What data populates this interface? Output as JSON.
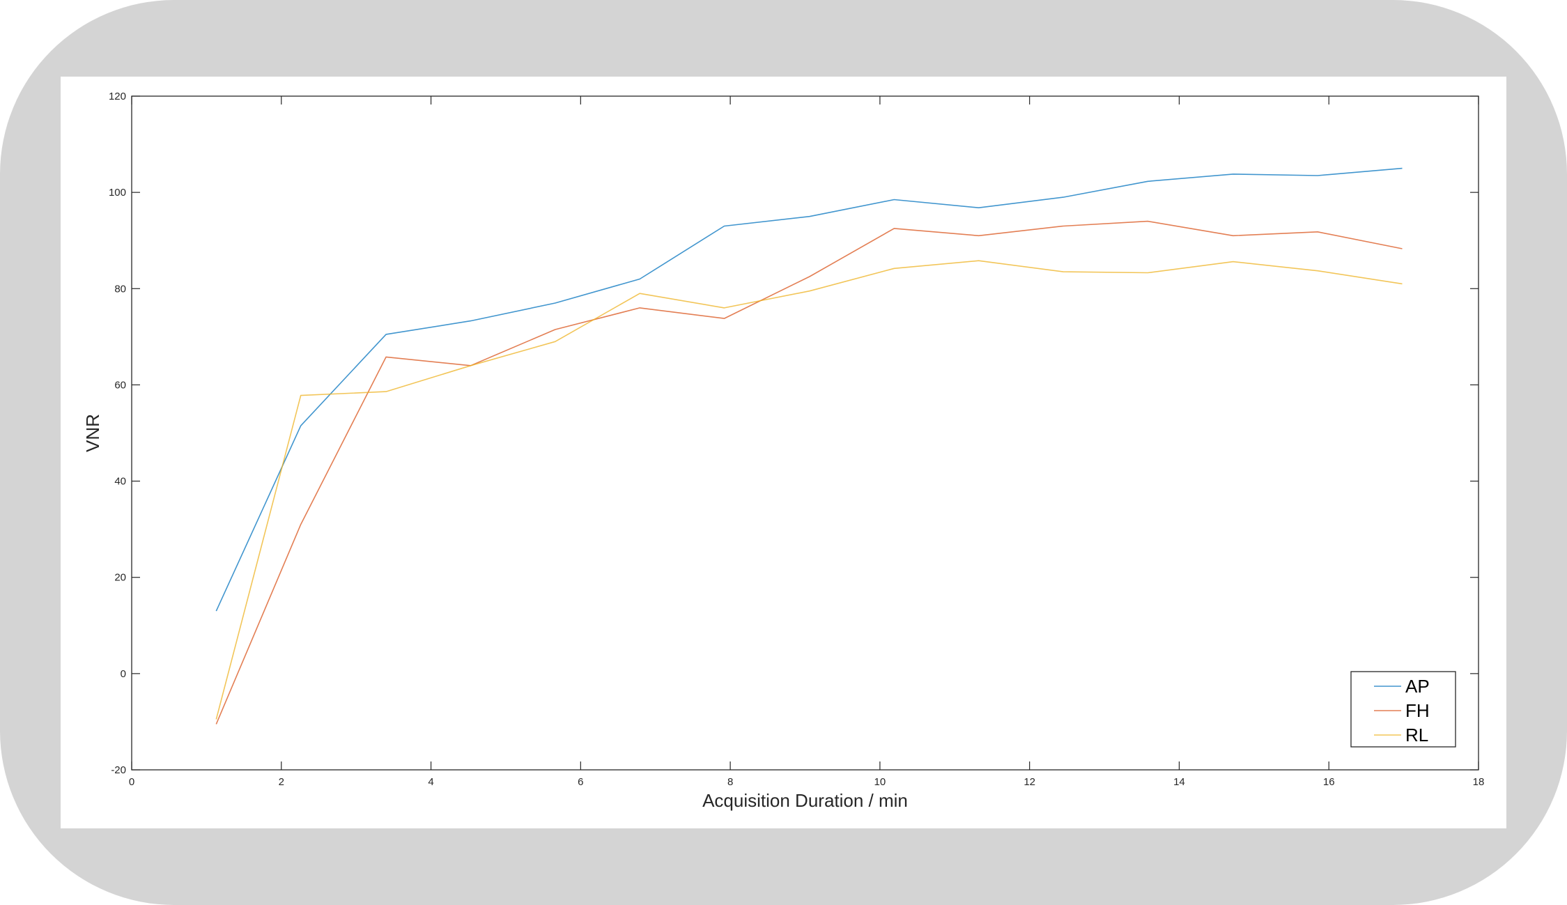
{
  "chart_data": {
    "type": "line",
    "title": "",
    "xlabel": "Acquisition Duration / min",
    "ylabel": "VNR",
    "xlim": [
      0,
      18
    ],
    "ylim": [
      -20,
      120
    ],
    "xticks": [
      0,
      2,
      4,
      6,
      8,
      10,
      12,
      14,
      16,
      18
    ],
    "yticks": [
      -20,
      0,
      20,
      40,
      60,
      80,
      100,
      120
    ],
    "grid": false,
    "legend_position": "bottom-right",
    "x": [
      1.13,
      2.26,
      3.4,
      4.53,
      5.66,
      6.79,
      7.92,
      9.06,
      10.19,
      11.32,
      12.45,
      13.58,
      14.72,
      15.85,
      16.98
    ],
    "series": [
      {
        "name": "AP",
        "color": "#0072BD",
        "values": [
          13,
          51.5,
          70.5,
          73.3,
          77,
          82,
          93,
          95,
          98.5,
          96.8,
          99,
          102.3,
          103.8,
          103.5,
          105
        ]
      },
      {
        "name": "FH",
        "color": "#D95319",
        "values": [
          -10.5,
          31,
          65.8,
          64,
          71.5,
          76,
          73.8,
          82.5,
          92.5,
          91,
          93,
          94,
          91,
          91.8,
          88.3
        ]
      },
      {
        "name": "RL",
        "color": "#EDB120",
        "values": [
          -9.5,
          57.8,
          58.6,
          64,
          69,
          79,
          76,
          79.5,
          84.2,
          85.8,
          83.5,
          83.3,
          85.6,
          83.7,
          81
        ]
      }
    ]
  }
}
